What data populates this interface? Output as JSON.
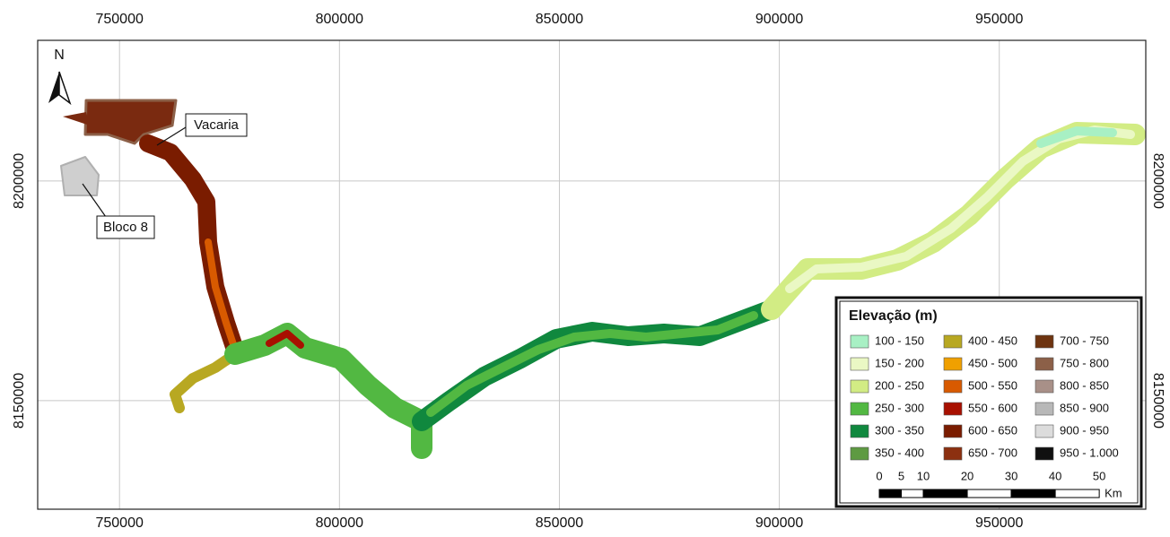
{
  "map": {
    "xlim": [
      731400,
      983300
    ],
    "ylim": [
      8125300,
      8232000
    ],
    "x_ticks": [
      750000,
      800000,
      850000,
      900000,
      950000
    ],
    "y_ticks": [
      8200000,
      8150000
    ],
    "grid": true,
    "north": "N",
    "places": [
      {
        "label": "Vacaria"
      },
      {
        "label": "Bloco 8"
      }
    ],
    "legend": {
      "title": "Elevação (m)",
      "items": [
        {
          "label": "100 - 150",
          "color": "#a8f0c4"
        },
        {
          "label": "150 - 200",
          "color": "#eaf8c4"
        },
        {
          "label": "200 - 250",
          "color": "#d2ec84"
        },
        {
          "label": "250 - 300",
          "color": "#52b842"
        },
        {
          "label": "300 - 350",
          "color": "#10883e"
        },
        {
          "label": "350 - 400",
          "color": "#5e9a42"
        },
        {
          "label": "400 - 450",
          "color": "#b8a822"
        },
        {
          "label": "450 - 500",
          "color": "#f0a000"
        },
        {
          "label": "500 - 550",
          "color": "#d85a00"
        },
        {
          "label": "550 - 600",
          "color": "#a81000"
        },
        {
          "label": "600 - 650",
          "color": "#7a1c00"
        },
        {
          "label": "650 - 700",
          "color": "#8c3010"
        },
        {
          "label": "700 - 750",
          "color": "#6e3410"
        },
        {
          "label": "750 - 800",
          "color": "#8c6048"
        },
        {
          "label": "800 - 850",
          "color": "#a89088"
        },
        {
          "label": "850 - 900",
          "color": "#b8b8b8"
        },
        {
          "label": "900 - 950",
          "color": "#dcdcdc"
        },
        {
          "label": "950 - 1.000",
          "color": "#101010"
        }
      ]
    },
    "scale_bar": {
      "ticks": [
        0,
        5,
        10,
        20,
        30,
        40,
        50
      ],
      "unit": "Km"
    }
  }
}
